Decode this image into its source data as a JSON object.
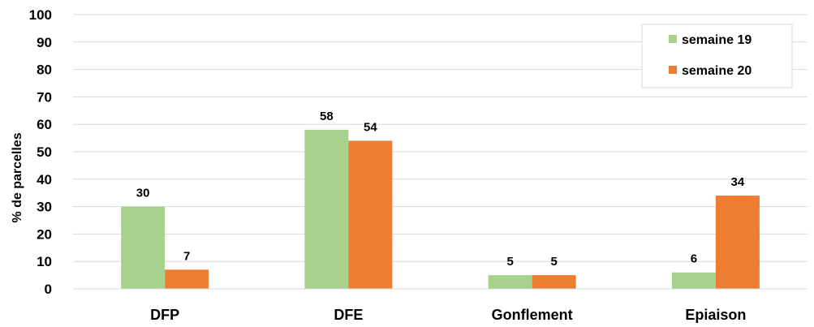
{
  "chart_data": {
    "type": "bar",
    "categories": [
      "DFP",
      "DFE",
      "Gonflement",
      "Epiaison"
    ],
    "series": [
      {
        "name": "semaine 19",
        "values": [
          30,
          58,
          5,
          6
        ],
        "color": "#A9D18E"
      },
      {
        "name": "semaine 20",
        "values": [
          7,
          54,
          5,
          34
        ],
        "color": "#ED7D31"
      }
    ],
    "ylabel": "% de parcelles",
    "xlabel": "",
    "ylim": [
      0,
      100
    ],
    "yticks": [
      0,
      10,
      20,
      30,
      40,
      50,
      60,
      70,
      80,
      90,
      100
    ],
    "grid": "horizontal",
    "legend_position": "top-right"
  }
}
